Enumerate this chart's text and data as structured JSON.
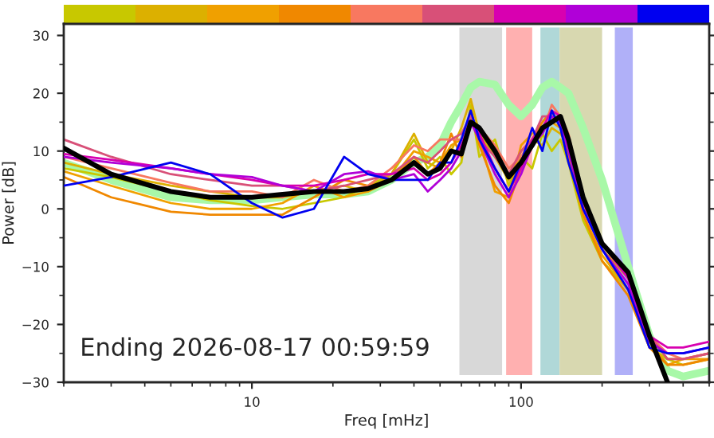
{
  "chart_data": {
    "type": "line",
    "xlabel": "Freq [mHz]",
    "ylabel": "Power [dB]",
    "log": "x",
    "xlim": [
      2,
      500
    ],
    "xticks": [
      10,
      100
    ],
    "ylim": [
      -30,
      32
    ],
    "yticks": [
      -30,
      -20,
      -10,
      0,
      10,
      20,
      30
    ],
    "grid": false,
    "legend": false,
    "marker": "none",
    "line_style": "solid",
    "x": [
      2,
      3,
      5,
      7,
      10,
      13,
      17,
      22,
      27,
      33,
      40,
      45,
      50,
      55,
      60,
      65,
      70,
      80,
      90,
      100,
      110,
      120,
      130,
      140,
      150,
      170,
      200,
      250,
      300,
      350,
      400,
      500
    ],
    "series": [
      {
        "color": "#c8c800",
        "values": [
          7,
          5.5,
          3,
          1.5,
          0.5,
          0,
          1,
          2,
          4,
          6,
          12,
          7,
          9,
          6,
          8,
          18,
          9,
          12,
          4,
          9,
          7,
          13,
          10,
          12,
          8,
          -2,
          -9,
          -14,
          -24,
          -26,
          -27,
          -26
        ]
      },
      {
        "color": "#dcb000",
        "values": [
          8,
          6,
          4,
          3,
          2,
          2,
          3,
          4,
          3,
          6,
          13,
          8,
          7,
          10,
          14,
          19,
          13,
          9,
          5,
          10,
          12,
          11,
          14,
          13,
          11,
          0,
          -7,
          -12,
          -22,
          -26,
          -26,
          -25
        ]
      },
      {
        "color": "#f0a000",
        "values": [
          6.5,
          4,
          1,
          0,
          0,
          1,
          4,
          2,
          3,
          5,
          10,
          9,
          8,
          11,
          12,
          16,
          12,
          3,
          2,
          11,
          13,
          14,
          15,
          14,
          10,
          -1,
          -8,
          -14,
          -23,
          -27,
          -26,
          -26
        ]
      },
      {
        "color": "#f08800",
        "values": [
          5.5,
          2,
          -0.5,
          -1,
          -1,
          -1,
          2,
          5,
          4,
          5,
          9,
          6,
          8,
          13,
          9,
          17,
          11,
          4,
          1,
          7,
          12,
          15,
          17,
          14,
          9,
          -1,
          -9,
          -15,
          -24,
          -27,
          -27,
          -26
        ]
      },
      {
        "color": "#f87860",
        "values": [
          9,
          7,
          4.5,
          3,
          3,
          2,
          5,
          3,
          4,
          7,
          11,
          10,
          12,
          12,
          12,
          15,
          14,
          11,
          7,
          9,
          12,
          13,
          18,
          16,
          13,
          1,
          -6,
          -12,
          -22,
          -25,
          -26,
          -25
        ]
      },
      {
        "color": "#d85078",
        "values": [
          12,
          9,
          6,
          5,
          4,
          4,
          3,
          4,
          5,
          6,
          9,
          8,
          10,
          12,
          13,
          16,
          12,
          9,
          6,
          10,
          12,
          16,
          16,
          15,
          12,
          1,
          -6,
          -12,
          -22,
          -26,
          -26,
          -25
        ]
      },
      {
        "color": "#d800b0",
        "values": [
          9.5,
          8.5,
          7,
          6,
          5,
          4,
          4,
          5,
          6,
          6,
          7,
          5,
          6,
          8,
          11,
          15,
          13,
          7,
          3,
          7,
          12,
          14,
          17,
          16,
          11,
          0,
          -6,
          -12,
          -22,
          -24,
          -24,
          -23
        ]
      },
      {
        "color": "#b000d8",
        "values": [
          9,
          8,
          7,
          6,
          5.5,
          4,
          3,
          6,
          6.5,
          5,
          6,
          3,
          5,
          7,
          10,
          15,
          12,
          6,
          2,
          6,
          11,
          13,
          16,
          15,
          10,
          0,
          -7,
          -13,
          -23,
          -25,
          -25,
          -24
        ]
      },
      {
        "color": "#0000f0",
        "values": [
          4,
          5.5,
          8,
          6,
          1,
          -1.5,
          0,
          9,
          6,
          5,
          5,
          5,
          8,
          8,
          12,
          17,
          12,
          7,
          3,
          8,
          14,
          10,
          17,
          14,
          8,
          0,
          -7,
          -14,
          -24,
          -25,
          -25,
          -24
        ]
      },
      {
        "color": "#a8f8a8",
        "values": [
          8,
          5,
          2,
          1.5,
          1.5,
          2,
          2.5,
          2.5,
          3,
          5,
          8,
          9,
          11,
          15,
          18,
          21,
          22,
          21.5,
          18,
          16,
          18,
          21,
          22,
          21,
          20,
          14,
          5,
          -10,
          -22,
          -28,
          -29,
          -28
        ]
      },
      {
        "color": "#000000",
        "values": [
          10.5,
          6,
          3,
          2,
          2,
          2.5,
          3,
          3,
          3.5,
          5,
          8,
          6,
          7,
          10,
          9.5,
          15,
          14,
          10,
          5.5,
          8,
          11,
          14,
          15,
          16,
          12,
          2,
          -6,
          -11,
          -22,
          -30,
          null,
          null
        ]
      }
    ],
    "bands": [
      {
        "axis": "x",
        "from": 59,
        "to": 85,
        "color": "#d8d8d8"
      },
      {
        "axis": "x",
        "from": 88,
        "to": 110,
        "color": "#ffb0b0"
      },
      {
        "axis": "x",
        "from": 118,
        "to": 139,
        "color": "#b0d8d8"
      },
      {
        "axis": "x",
        "from": 139,
        "to": 200,
        "color": "#d8d8b0"
      },
      {
        "axis": "x",
        "from": 223,
        "to": 260,
        "color": "#b0b0f8"
      }
    ],
    "annotations": [
      "Ending 2026-08-17 00:59:59"
    ]
  }
}
